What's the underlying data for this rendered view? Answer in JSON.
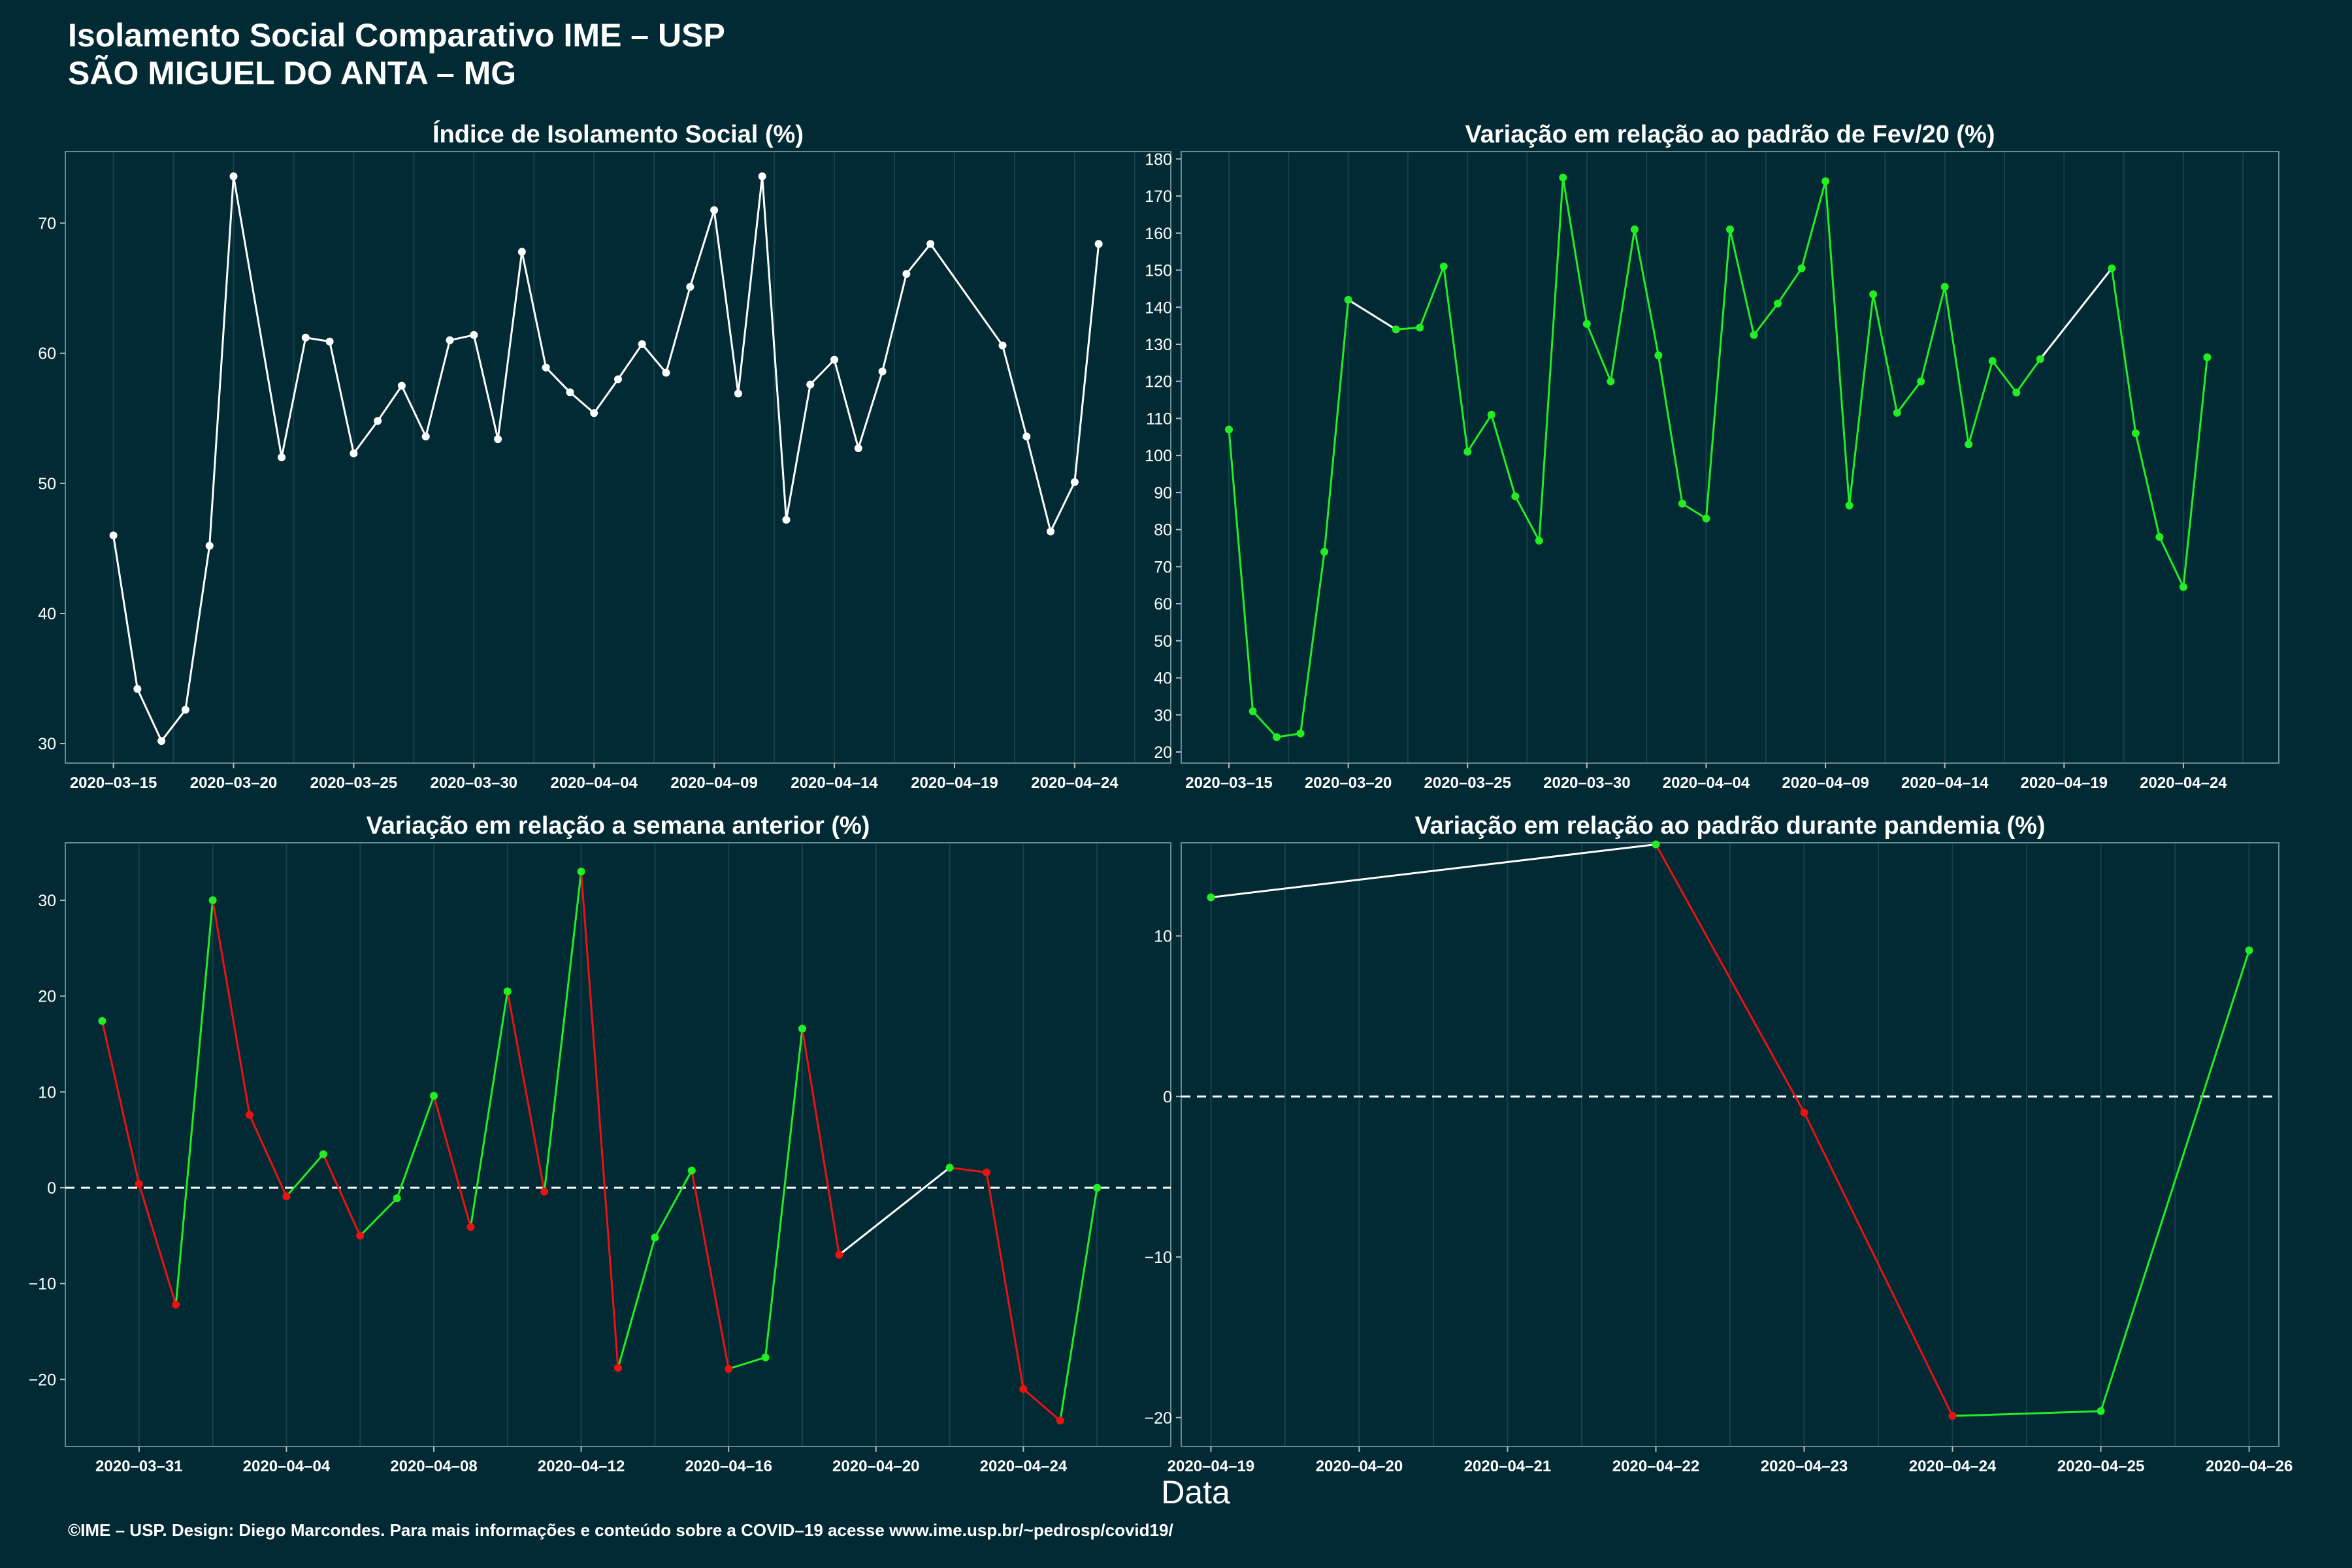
{
  "header": {
    "title_line1": "Isolamento Social Comparativo IME – USP",
    "title_line2": "SÃO MIGUEL DO ANTA – MG"
  },
  "x_axis_label": "Data",
  "footer": "©IME – USP. Design: Diego Marcondes. Para mais informações e conteúdo sobre a COVID–19 acesse www.ime.usp.br/~pedrosp/covid19/",
  "colors": {
    "background": "#022a35",
    "line_white": "#ffffff",
    "green": "#22ee22",
    "red": "#ee1111",
    "grid": "#16414b",
    "axis_text": "#ffffff"
  },
  "chart_data": [
    {
      "id": "isolamento",
      "type": "line",
      "title": "Índice de Isolamento Social (%)",
      "x_type": "date",
      "xlim": [
        "2020-03-13",
        "2020-04-28"
      ],
      "x_ticks": [
        "2020-03-15",
        "2020-03-20",
        "2020-03-25",
        "2020-03-30",
        "2020-04-04",
        "2020-04-09",
        "2020-04-14",
        "2020-04-19",
        "2020-04-24"
      ],
      "ylim": [
        28.5,
        75.5
      ],
      "y_ticks": [
        30,
        40,
        50,
        60,
        70
      ],
      "color_mode": "white",
      "x": [
        "2020-03-15",
        "2020-03-16",
        "2020-03-17",
        "2020-03-18",
        "2020-03-19",
        "2020-03-20",
        "2020-03-22",
        "2020-03-23",
        "2020-03-24",
        "2020-03-25",
        "2020-03-26",
        "2020-03-27",
        "2020-03-28",
        "2020-03-29",
        "2020-03-30",
        "2020-03-31",
        "2020-04-01",
        "2020-04-02",
        "2020-04-03",
        "2020-04-04",
        "2020-04-05",
        "2020-04-06",
        "2020-04-07",
        "2020-04-08",
        "2020-04-09",
        "2020-04-10",
        "2020-04-11",
        "2020-04-12",
        "2020-04-13",
        "2020-04-14",
        "2020-04-15",
        "2020-04-16",
        "2020-04-17",
        "2020-04-18",
        "2020-04-21",
        "2020-04-22",
        "2020-04-23",
        "2020-04-24",
        "2020-04-25"
      ],
      "y": [
        46.0,
        34.2,
        30.2,
        32.6,
        45.2,
        73.6,
        52.0,
        61.2,
        60.9,
        52.3,
        54.8,
        57.5,
        53.6,
        61.0,
        61.4,
        53.4,
        67.8,
        58.9,
        57.0,
        55.4,
        58.0,
        60.7,
        58.5,
        65.1,
        71.0,
        56.9,
        73.6,
        47.2,
        57.6,
        59.5,
        52.7,
        58.6,
        66.1,
        68.4,
        60.6,
        53.6,
        46.3,
        50.1,
        68.4
      ]
    },
    {
      "id": "fev20",
      "type": "line",
      "title": "Variação em relação ao padrão de Fev/20 (%)",
      "x_type": "date",
      "xlim": [
        "2020-03-13",
        "2020-04-28"
      ],
      "x_ticks": [
        "2020-03-15",
        "2020-03-20",
        "2020-03-25",
        "2020-03-30",
        "2020-04-04",
        "2020-04-09",
        "2020-04-14",
        "2020-04-19",
        "2020-04-24"
      ],
      "ylim": [
        17,
        182
      ],
      "y_ticks": [
        20,
        30,
        40,
        50,
        60,
        70,
        80,
        90,
        100,
        110,
        120,
        130,
        140,
        150,
        160,
        170,
        180
      ],
      "color_mode": "green_gap_white",
      "x": [
        "2020-03-15",
        "2020-03-16",
        "2020-03-17",
        "2020-03-18",
        "2020-03-19",
        "2020-03-20",
        "2020-03-22",
        "2020-03-23",
        "2020-03-24",
        "2020-03-25",
        "2020-03-26",
        "2020-03-27",
        "2020-03-28",
        "2020-03-29",
        "2020-03-30",
        "2020-03-31",
        "2020-04-01",
        "2020-04-02",
        "2020-04-03",
        "2020-04-04",
        "2020-04-05",
        "2020-04-06",
        "2020-04-07",
        "2020-04-08",
        "2020-04-09",
        "2020-04-10",
        "2020-04-11",
        "2020-04-12",
        "2020-04-13",
        "2020-04-14",
        "2020-04-15",
        "2020-04-16",
        "2020-04-17",
        "2020-04-18",
        "2020-04-21",
        "2020-04-22",
        "2020-04-23",
        "2020-04-24",
        "2020-04-25"
      ],
      "y": [
        107,
        31,
        24,
        25,
        74,
        142,
        134,
        134.5,
        151,
        101,
        111,
        89,
        77,
        175,
        135.5,
        120,
        161,
        127,
        87,
        83,
        161,
        132.5,
        141,
        150.5,
        174,
        86.5,
        143.5,
        111.5,
        120,
        145.5,
        103,
        125.5,
        117,
        126,
        150.5,
        106,
        78,
        64.5,
        126.5
      ]
    },
    {
      "id": "semana",
      "type": "line",
      "title": "Variação em relação a semana anterior (%)",
      "x_type": "date",
      "xlim": [
        "2020-03-29",
        "2020-04-28"
      ],
      "x_ticks": [
        "2020-03-31",
        "2020-04-04",
        "2020-04-08",
        "2020-04-12",
        "2020-04-16",
        "2020-04-20",
        "2020-04-24"
      ],
      "ylim": [
        -27,
        36
      ],
      "y_ticks": [
        -20,
        -10,
        0,
        10,
        20,
        30
      ],
      "zero_line": true,
      "color_mode": "trend",
      "x": [
        "2020-03-30",
        "2020-03-31",
        "2020-04-01",
        "2020-04-02",
        "2020-04-03",
        "2020-04-04",
        "2020-04-05",
        "2020-04-06",
        "2020-04-07",
        "2020-04-08",
        "2020-04-09",
        "2020-04-10",
        "2020-04-11",
        "2020-04-12",
        "2020-04-13",
        "2020-04-14",
        "2020-04-15",
        "2020-04-16",
        "2020-04-17",
        "2020-04-18",
        "2020-04-19",
        "2020-04-22",
        "2020-04-23",
        "2020-04-24",
        "2020-04-25",
        "2020-04-26"
      ],
      "y": [
        17.4,
        0.4,
        -12.2,
        30.0,
        7.6,
        -0.9,
        3.5,
        -5.0,
        -1.1,
        9.6,
        -4.1,
        20.5,
        -0.4,
        33.0,
        -18.8,
        -5.2,
        1.8,
        -18.9,
        -17.7,
        16.6,
        -7.0,
        2.1,
        1.6,
        -21.0,
        -24.3,
        0.0
      ]
    },
    {
      "id": "pandemia",
      "type": "line",
      "title": "Variação em relação ao padrão durante pandemia (%)",
      "x_type": "date",
      "xlim": [
        "2020-04-18 19:12",
        "2020-04-26 04:48"
      ],
      "x_ticks": [
        "2020-04-19",
        "2020-04-20",
        "2020-04-21",
        "2020-04-22",
        "2020-04-23",
        "2020-04-24",
        "2020-04-25",
        "2020-04-26"
      ],
      "ylim": [
        -21.8,
        15.8
      ],
      "y_ticks": [
        -20,
        -10,
        0,
        10
      ],
      "zero_line": true,
      "color_mode": "trend",
      "x": [
        "2020-04-19",
        "2020-04-22",
        "2020-04-23",
        "2020-04-24",
        "2020-04-25",
        "2020-04-26"
      ],
      "y": [
        12.4,
        15.7,
        -1.0,
        -19.9,
        -19.6,
        9.1
      ]
    }
  ]
}
